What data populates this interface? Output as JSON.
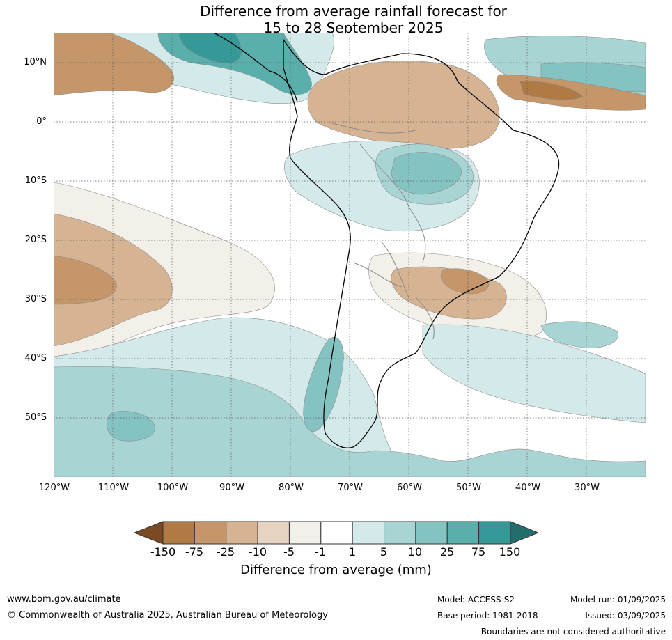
{
  "title_line1": "Difference from average rainfall forecast for",
  "title_line2": "15 to 28 September 2025",
  "lat_labels": [
    "10°N",
    "0°",
    "10°S",
    "20°S",
    "30°S",
    "40°S",
    "50°S"
  ],
  "lon_labels": [
    "120°W",
    "110°W",
    "100°W",
    "90°W",
    "80°W",
    "70°W",
    "60°W",
    "50°W",
    "40°W",
    "30°W"
  ],
  "colorbar": {
    "ticks": [
      "-150",
      "-75",
      "-25",
      "-10",
      "-5",
      "-1",
      "1",
      "5",
      "10",
      "25",
      "75",
      "150"
    ],
    "colors": [
      "#7a4a24",
      "#b07a44",
      "#c49669",
      "#d6b493",
      "#e6d3c1",
      "#f3efe9",
      "#ffffff",
      "#d4e9e9",
      "#a9d4d4",
      "#85c2c2",
      "#5aaeab",
      "#359a97",
      "#236e6c"
    ],
    "title": "Difference from average (mm)"
  },
  "footer": {
    "website": "www.bom.gov.au/climate",
    "copyright": "© Commonwealth of Australia 2025, Australian Bureau of Meteorology",
    "model": "Model: ACCESS-S2",
    "base_period": "Base period: 1981-2018",
    "model_run": "Model run: 01/09/2025",
    "issued": "Issued: 03/09/2025",
    "disclaimer": "Boundaries are not considered authoritative"
  }
}
